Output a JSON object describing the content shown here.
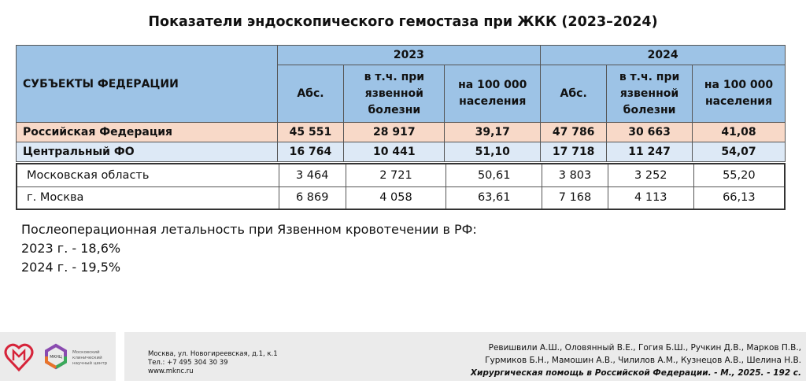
{
  "title": "Показатели эндоскопического гемостаза при ЖКК (2023–2024)",
  "table": {
    "subject_header": "СУБЪЕКТЫ ФЕДЕРАЦИИ",
    "years": [
      "2023",
      "2024"
    ],
    "columns": [
      "Абс.",
      "в т.ч. при язвенной болезни",
      "на 100 000 населения"
    ],
    "rows": [
      {
        "name": "Российская Федерация",
        "v": [
          "45 551",
          "28 917",
          "39,17",
          "47 786",
          "30 663",
          "41,08"
        ]
      },
      {
        "name": "Центральный ФО",
        "v": [
          "16 764",
          "10 441",
          "51,10",
          "17 718",
          "11 247",
          "54,07"
        ]
      },
      {
        "name": "Московская область",
        "v": [
          "3 464",
          "2 721",
          "50,61",
          "3 803",
          "3 252",
          "55,20"
        ]
      },
      {
        "name": "г. Москва",
        "v": [
          "6 869",
          "4 058",
          "63,61",
          "7 168",
          "4 113",
          "66,13"
        ]
      }
    ]
  },
  "note": {
    "line1": "Послеоперационная летальность при Язвенном кровотечении в РФ:",
    "line2": "2023 г. - 18,6%",
    "line3": "2024 г. - 19,5%"
  },
  "footer": {
    "logo_text": "Московский клинический научный центр",
    "logo_abbr": "МКНЦ",
    "address": "Москва, ул. Новогиреевская, д.1, к.1",
    "phone": "Тел.: +7 495 304 30 39",
    "site": "www.mknc.ru",
    "authors1": "Ревишвили А.Ш., Оловянный В.Е., Гогия Б.Ш., Ручкин Д.В., Марков П.В.,",
    "authors2": "Гурмиков Б.Н., Мамошин А.В., Чилилов А.М., Кузнецов А.В., Шелина Н.В.",
    "citation": "Хирургическая помощь в Российской Федерации. - М., 2025. - 192 с."
  }
}
